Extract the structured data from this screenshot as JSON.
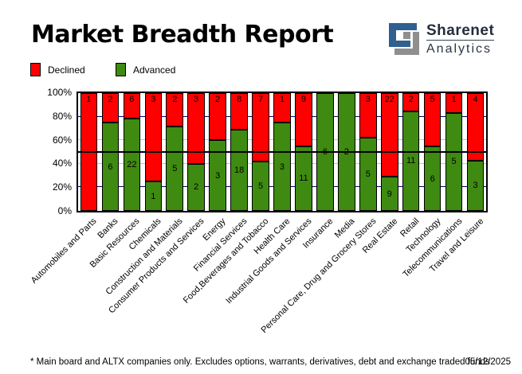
{
  "header": {
    "title": "Market Breadth Report",
    "logo": {
      "name": "Sharenet",
      "sub": "Analytics",
      "icon_blue": "#2f6090",
      "icon_gray": "#8f8f8f"
    }
  },
  "legend": [
    {
      "label": "Declined",
      "color": "#ff0000"
    },
    {
      "label": "Advanced",
      "color": "#3f8a10"
    }
  ],
  "chart_data": {
    "type": "bar",
    "stacked": true,
    "percent_scale": true,
    "title": "Market Breadth Report",
    "categories": [
      "Automobiles and Parts",
      "Banks",
      "Basic Resources",
      "Chemicals",
      "Construction and Materials",
      "Consumer Products and Services",
      "Energy",
      "Financial Services",
      "Food,Beverages and Tobacco",
      "Health Care",
      "Industrial Goods and Services",
      "Insurance",
      "Media",
      "Personal Care, Drug and Grocery Stores",
      "Real Estate",
      "Retail",
      "Technology",
      "Telecommunications",
      "Travel and Leisure"
    ],
    "series": [
      {
        "name": "Declined",
        "color": "#ff0000",
        "values": [
          1,
          2,
          6,
          3,
          2,
          3,
          2,
          8,
          7,
          1,
          9,
          0,
          0,
          3,
          22,
          2,
          5,
          1,
          4
        ]
      },
      {
        "name": "Advanced",
        "color": "#3f8a10",
        "values": [
          0,
          6,
          22,
          1,
          5,
          2,
          3,
          18,
          5,
          3,
          11,
          6,
          2,
          5,
          9,
          11,
          6,
          5,
          3
        ]
      }
    ],
    "y_ticks": [
      "0%",
      "20%",
      "40%",
      "60%",
      "80%",
      "100%"
    ],
    "ylim": [
      0,
      100
    ],
    "gridlines": {
      "navy_pcts": [
        20,
        80
      ],
      "gray_pcts": [
        40,
        60
      ],
      "black_pcts": [
        50
      ],
      "navy_color": "#000080",
      "gray_color": "#c4c4c4"
    },
    "legend_position": "top-left",
    "value_labels": "shown on segments"
  },
  "footer": {
    "note": "* Main board and ALTX companies only. Excludes options, warrants, derivatives, debt and exchange traded funds",
    "date": "05/12/2025"
  }
}
